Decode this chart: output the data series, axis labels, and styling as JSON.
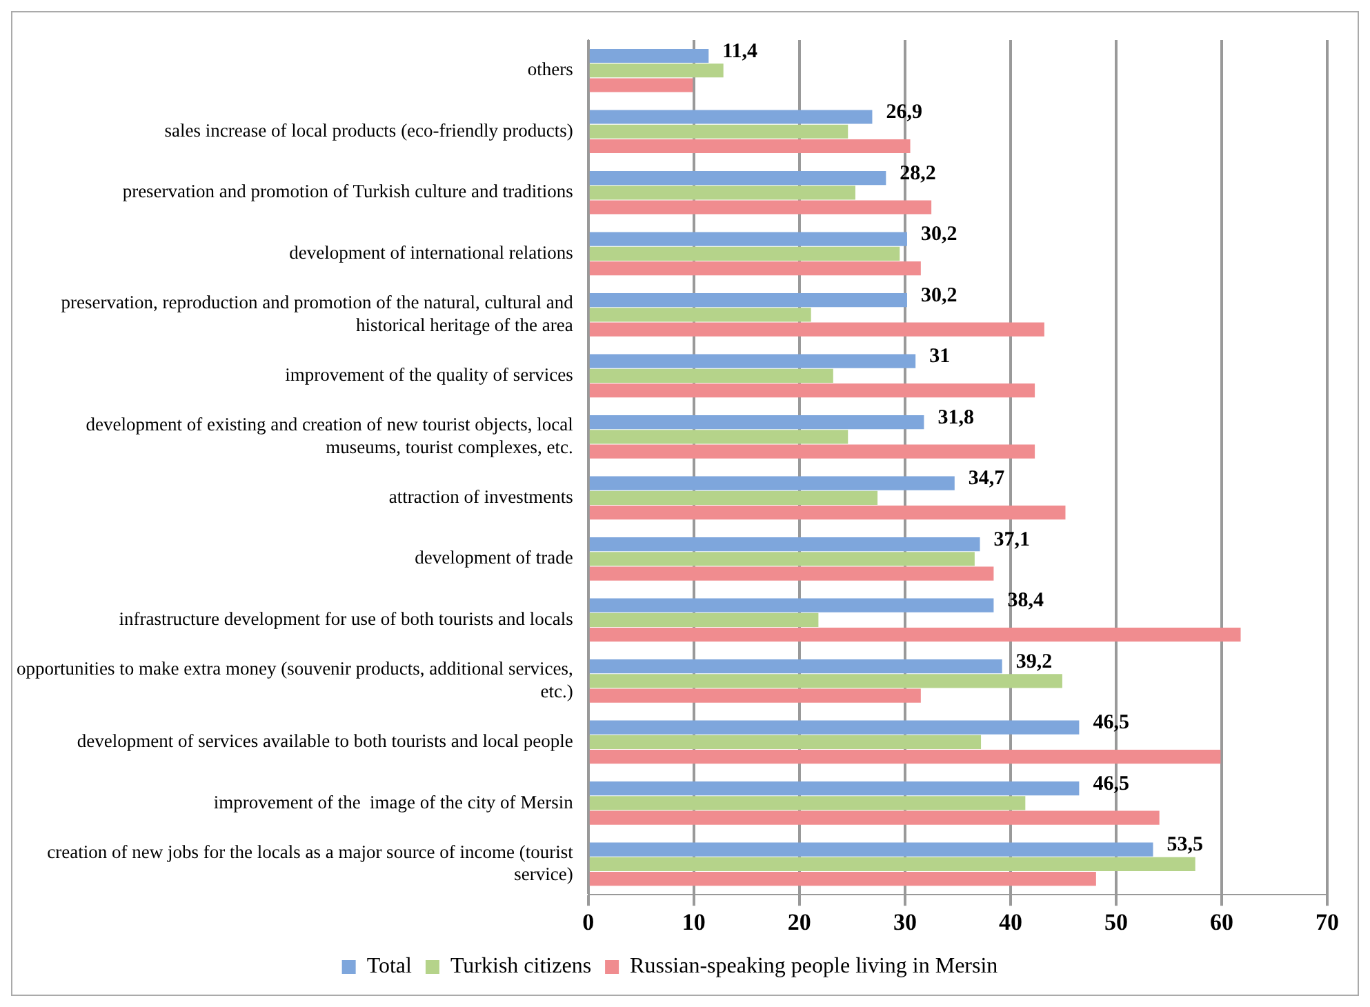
{
  "chart_data": {
    "type": "bar",
    "orientation": "horizontal",
    "categories": [
      "others",
      "sales increase of local products (eco-friendly products)",
      "preservation and promotion of Turkish culture and traditions",
      "development of international relations",
      "preservation, reproduction and promotion of the natural, cultural and historical heritage of the area",
      "improvement of the quality of services",
      "development of existing and creation of new tourist objects, local museums, tourist complexes, etc.",
      "attraction of investments",
      "development of trade",
      "infrastructure development for use of both tourists and locals",
      "opportunities to make extra money (souvenir products, additional services, etc.)",
      "development of services available to both tourists and local people",
      "improvement of the  image of the city of Mersin",
      "creation of new jobs for the locals as a major source of income (tourist service)"
    ],
    "series": [
      {
        "name": "Total",
        "color": "#7ea6dc",
        "values": [
          11.4,
          26.9,
          28.2,
          30.2,
          30.2,
          31,
          31.8,
          34.7,
          37.1,
          38.4,
          39.2,
          46.5,
          46.5,
          53.5
        ],
        "value_labels": [
          "11,4",
          "26,9",
          "28,2",
          "30,2",
          "30,2",
          "31",
          "31,8",
          "34,7",
          "37,1",
          "38,4",
          "39,2",
          "46,5",
          "46,5",
          "53,5"
        ]
      },
      {
        "name": "Turkish citizens",
        "color": "#b5d38a",
        "values": [
          12.8,
          24.6,
          25.3,
          29.5,
          21.1,
          23.2,
          24.6,
          27.4,
          36.6,
          21.8,
          44.9,
          37.2,
          41.4,
          57.5
        ]
      },
      {
        "name": "Russian-speaking people living in Mersin",
        "color": "#f08c8f",
        "values": [
          9.9,
          30.5,
          32.5,
          31.5,
          43.2,
          42.3,
          42.3,
          45.2,
          38.4,
          61.8,
          31.5,
          59.9,
          54.1,
          48.1
        ]
      }
    ],
    "xlim": [
      0,
      70
    ],
    "xticks": [
      0,
      10,
      20,
      30,
      40,
      50,
      60,
      70
    ],
    "grid": "x",
    "legend": "bottom"
  }
}
